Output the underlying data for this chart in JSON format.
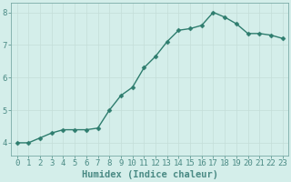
{
  "x": [
    0,
    1,
    2,
    3,
    4,
    5,
    6,
    7,
    8,
    9,
    10,
    11,
    12,
    13,
    14,
    15,
    16,
    17,
    18,
    19,
    20,
    21,
    22,
    23
  ],
  "y": [
    4.0,
    4.0,
    4.15,
    4.3,
    4.4,
    4.4,
    4.4,
    4.45,
    5.0,
    5.45,
    5.7,
    6.3,
    6.65,
    7.1,
    7.45,
    7.5,
    7.6,
    8.0,
    7.85,
    7.65,
    7.35,
    7.35,
    7.3,
    7.2
  ],
  "bg_color": "#d4eeea",
  "line_color": "#2e7d6e",
  "marker_color": "#2e7d6e",
  "grid_color": "#c4ddd8",
  "axis_color": "#4a8a84",
  "spine_color": "#7aaba6",
  "xlabel": "Humidex (Indice chaleur)",
  "ylim": [
    3.6,
    8.3
  ],
  "xlim": [
    -0.5,
    23.5
  ],
  "yticks": [
    4,
    5,
    6,
    7,
    8
  ],
  "xticks": [
    0,
    1,
    2,
    3,
    4,
    5,
    6,
    7,
    8,
    9,
    10,
    11,
    12,
    13,
    14,
    15,
    16,
    17,
    18,
    19,
    20,
    21,
    22,
    23
  ],
  "tick_fontsize": 6.5,
  "label_fontsize": 7.5,
  "line_width": 1.0,
  "marker_size": 2.5
}
